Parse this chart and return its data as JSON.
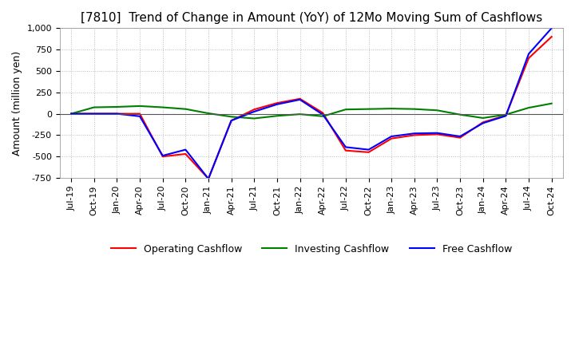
{
  "title": "[7810]  Trend of Change in Amount (YoY) of 12Mo Moving Sum of Cashflows",
  "ylabel": "Amount (million yen)",
  "ylim": [
    -750,
    1000
  ],
  "yticks": [
    -750,
    -500,
    -250,
    0,
    250,
    500,
    750,
    1000
  ],
  "x_labels": [
    "Jul-19",
    "Oct-19",
    "Jan-20",
    "Apr-20",
    "Jul-20",
    "Oct-20",
    "Jan-21",
    "Apr-21",
    "Jul-21",
    "Oct-21",
    "Jan-22",
    "Apr-22",
    "Jul-22",
    "Oct-22",
    "Jan-23",
    "Apr-23",
    "Jul-23",
    "Oct-23",
    "Jan-24",
    "Apr-24",
    "Jul-24",
    "Oct-24"
  ],
  "operating": [
    0,
    0,
    0,
    0,
    -500,
    -470,
    -760,
    -80,
    50,
    125,
    175,
    10,
    -430,
    -450,
    -290,
    -250,
    -240,
    -280,
    -100,
    -20,
    650,
    900
  ],
  "investing": [
    0,
    75,
    80,
    90,
    75,
    55,
    5,
    -35,
    -55,
    -25,
    -5,
    -30,
    50,
    55,
    60,
    55,
    40,
    -10,
    -50,
    -10,
    70,
    120
  ],
  "free": [
    0,
    0,
    0,
    -30,
    -490,
    -420,
    -760,
    -80,
    25,
    110,
    165,
    -10,
    -390,
    -420,
    -265,
    -230,
    -225,
    -265,
    -110,
    -25,
    700,
    1000
  ],
  "op_color": "#ff0000",
  "inv_color": "#008000",
  "free_color": "#0000ff",
  "legend_labels": [
    "Operating Cashflow",
    "Investing Cashflow",
    "Free Cashflow"
  ],
  "title_fontsize": 11,
  "axis_label_fontsize": 9,
  "tick_fontsize": 8,
  "legend_fontsize": 9,
  "background_color": "#ffffff",
  "grid_color": "#aaaaaa"
}
